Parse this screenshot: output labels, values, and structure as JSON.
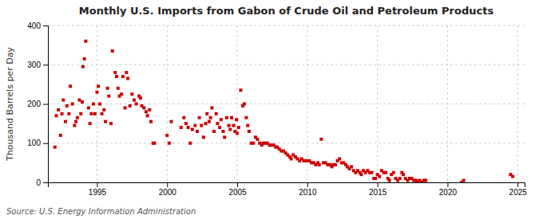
{
  "chart_data": {
    "type": "scatter",
    "title": "Monthly U.S. Imports from Gabon of Crude Oil and Petroleum Products",
    "ylabel": "Thousand Barrels per Day",
    "annotations": [
      "Source: U.S. Energy Information Administration"
    ],
    "color": "#cc0000",
    "marker": "square",
    "grid": true,
    "xlim": [
      1991.5,
      2025.5
    ],
    "ylim": [
      0,
      400
    ],
    "xticks": [
      1995,
      2000,
      2005,
      2010,
      2015,
      2020,
      2025
    ],
    "yticks": [
      0,
      100,
      200,
      300,
      400
    ],
    "x": [
      1992.0,
      1992.1,
      1992.25,
      1992.4,
      1992.5,
      1992.6,
      1992.75,
      1992.85,
      1993.0,
      1993.1,
      1993.25,
      1993.4,
      1993.5,
      1993.6,
      1993.75,
      1993.85,
      1993.95,
      1994.0,
      1994.1,
      1994.2,
      1994.4,
      1994.5,
      1994.6,
      1994.75,
      1994.85,
      1995.0,
      1995.1,
      1995.2,
      1995.35,
      1995.5,
      1995.6,
      1995.75,
      1995.85,
      1996.0,
      1996.1,
      1996.3,
      1996.4,
      1996.5,
      1996.6,
      1996.75,
      1996.85,
      1997.0,
      1997.1,
      1997.2,
      1997.35,
      1997.5,
      1997.65,
      1997.8,
      1998.0,
      1998.1,
      1998.2,
      1998.35,
      1998.5,
      1998.6,
      1998.75,
      1998.85,
      1999.0,
      1999.1,
      2000.0,
      2000.15,
      2000.3,
      2001.0,
      2001.2,
      2001.35,
      2001.5,
      2001.65,
      2001.8,
      2002.0,
      2002.15,
      2002.3,
      2002.45,
      2002.6,
      2002.75,
      2002.85,
      2003.0,
      2003.1,
      2003.2,
      2003.35,
      2003.5,
      2003.6,
      2003.75,
      2003.85,
      2004.0,
      2004.1,
      2004.25,
      2004.4,
      2004.5,
      2004.6,
      2004.75,
      2004.85,
      2004.95,
      2005.0,
      2005.1,
      2005.25,
      2005.4,
      2005.5,
      2005.65,
      2005.75,
      2005.85,
      2006.0,
      2006.15,
      2006.3,
      2006.45,
      2006.6,
      2006.75,
      2006.85,
      2007.0,
      2007.15,
      2007.3,
      2007.45,
      2007.6,
      2007.75,
      2007.85,
      2008.0,
      2008.15,
      2008.3,
      2008.45,
      2008.6,
      2008.75,
      2008.85,
      2009.0,
      2009.15,
      2009.3,
      2009.45,
      2009.6,
      2009.75,
      2009.85,
      2010.0,
      2010.15,
      2010.3,
      2010.45,
      2010.6,
      2010.75,
      2010.85,
      2011.0,
      2011.15,
      2011.3,
      2011.45,
      2011.6,
      2011.75,
      2011.85,
      2012.0,
      2012.15,
      2012.3,
      2012.45,
      2012.6,
      2012.75,
      2012.85,
      2013.0,
      2013.15,
      2013.3,
      2013.45,
      2013.6,
      2013.75,
      2013.85,
      2014.0,
      2014.15,
      2014.3,
      2014.45,
      2014.6,
      2014.75,
      2014.85,
      2015.0,
      2015.15,
      2015.3,
      2015.45,
      2015.6,
      2015.75,
      2015.85,
      2016.0,
      2016.15,
      2016.3,
      2016.45,
      2016.6,
      2016.75,
      2016.85,
      2017.0,
      2017.15,
      2017.3,
      2017.45,
      2017.6,
      2017.75,
      2017.85,
      2018.0,
      2018.15,
      2018.3,
      2018.45,
      2021.0,
      2021.15,
      2024.5,
      2024.65
    ],
    "values": [
      90,
      170,
      185,
      120,
      175,
      210,
      155,
      195,
      175,
      245,
      200,
      145,
      155,
      165,
      210,
      175,
      205,
      295,
      315,
      360,
      190,
      150,
      175,
      200,
      175,
      230,
      245,
      200,
      175,
      185,
      155,
      240,
      220,
      150,
      335,
      280,
      270,
      240,
      220,
      225,
      270,
      190,
      280,
      265,
      195,
      225,
      210,
      200,
      220,
      215,
      195,
      190,
      180,
      170,
      185,
      155,
      100,
      100,
      120,
      100,
      155,
      140,
      165,
      150,
      140,
      100,
      135,
      145,
      130,
      165,
      145,
      115,
      150,
      175,
      155,
      165,
      190,
      130,
      175,
      150,
      140,
      160,
      130,
      115,
      165,
      145,
      135,
      165,
      145,
      130,
      160,
      125,
      140,
      235,
      195,
      200,
      165,
      145,
      130,
      100,
      100,
      115,
      110,
      100,
      95,
      100,
      100,
      100,
      95,
      95,
      95,
      90,
      90,
      85,
      80,
      80,
      75,
      70,
      65,
      60,
      70,
      65,
      60,
      55,
      60,
      55,
      55,
      55,
      55,
      50,
      50,
      45,
      50,
      45,
      110,
      50,
      50,
      45,
      45,
      40,
      45,
      45,
      55,
      60,
      50,
      50,
      45,
      40,
      35,
      40,
      30,
      25,
      30,
      25,
      20,
      30,
      25,
      30,
      25,
      25,
      10,
      10,
      20,
      15,
      30,
      25,
      25,
      10,
      5,
      20,
      25,
      10,
      5,
      10,
      25,
      20,
      10,
      5,
      10,
      10,
      5,
      5,
      0,
      5,
      0,
      5,
      5,
      0,
      5,
      20,
      15
    ]
  }
}
